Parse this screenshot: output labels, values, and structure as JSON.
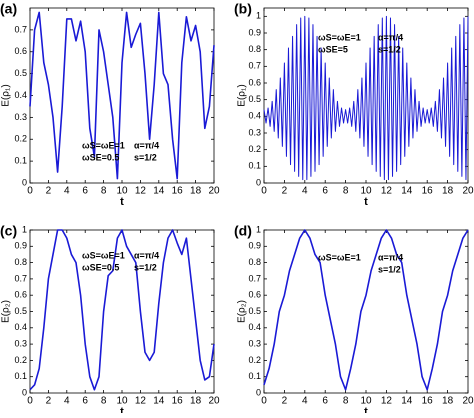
{
  "chart_data": [
    {
      "type": "line",
      "panel_label": "(a)",
      "x_label": "t",
      "y_label": "E(ρ₁)",
      "color": "#1a1ad6",
      "annotations": [
        "ωS=ωE=1",
        "ωSE=0.5",
        "α=π/4",
        "s=1/2"
      ],
      "xlim": [
        0,
        20
      ],
      "xticks": [
        0,
        2,
        4,
        6,
        8,
        10,
        12,
        14,
        16,
        18,
        20
      ],
      "ylim": [
        0,
        0.8
      ],
      "yticks": [
        0,
        0.1,
        0.2,
        0.3,
        0.4,
        0.5,
        0.6,
        0.7
      ],
      "x": [
        0,
        0.5,
        1,
        1.5,
        2,
        2.5,
        3,
        3.5,
        4,
        4.5,
        5,
        5.5,
        6,
        6.5,
        7,
        7.5,
        8,
        8.5,
        9,
        9.5,
        10,
        10.5,
        11,
        11.5,
        12,
        12.5,
        13,
        13.5,
        14,
        14.5,
        15,
        15.5,
        16,
        16.5,
        17,
        17.5,
        18,
        18.5,
        19,
        19.5,
        20
      ],
      "values": [
        0.35,
        0.7,
        0.78,
        0.55,
        0.45,
        0.3,
        0.05,
        0.35,
        0.75,
        0.75,
        0.65,
        0.74,
        0.6,
        0.25,
        0.12,
        0.7,
        0.6,
        0.45,
        0.3,
        0.02,
        0.55,
        0.78,
        0.62,
        0.68,
        0.73,
        0.5,
        0.2,
        0.45,
        0.78,
        0.5,
        0.45,
        0.2,
        0.02,
        0.55,
        0.76,
        0.65,
        0.72,
        0.6,
        0.25,
        0.35,
        0.63
      ]
    },
    {
      "type": "line",
      "panel_label": "(b)",
      "x_label": "t",
      "y_label": "E(ρ₁)",
      "color": "#1a1ad6",
      "annotations": [
        "ωS=ωE=1",
        "ωSE=5",
        "α=π/4",
        "s=1/2"
      ],
      "xlim": [
        0,
        20
      ],
      "xticks": [
        0,
        2,
        4,
        6,
        8,
        10,
        12,
        14,
        16,
        18,
        20
      ],
      "ylim": [
        0,
        1.05
      ],
      "yticks": [
        0,
        0.1,
        0.2,
        0.3,
        0.4,
        0.5,
        0.6,
        0.7,
        0.8,
        0.9,
        1
      ],
      "x": [
        0,
        0.2,
        0.4,
        0.6,
        0.8,
        1,
        1.2,
        1.4,
        1.6,
        1.8,
        2,
        2.2,
        2.4,
        2.6,
        2.8,
        3,
        3.2,
        3.4,
        3.6,
        3.8,
        4,
        4.2,
        4.4,
        4.6,
        4.8,
        5,
        5.2,
        5.4,
        5.6,
        5.8,
        6,
        6.2,
        6.4,
        6.6,
        6.8,
        7,
        7.2,
        7.4,
        7.6,
        7.8,
        8,
        8.2,
        8.4,
        8.6,
        8.8,
        9,
        9.2,
        9.4,
        9.6,
        9.8,
        10,
        10.2,
        10.4,
        10.6,
        10.8,
        11,
        11.2,
        11.4,
        11.6,
        11.8,
        12,
        12.2,
        12.4,
        12.6,
        12.8,
        13,
        13.2,
        13.4,
        13.6,
        13.8,
        14,
        14.2,
        14.4,
        14.6,
        14.8,
        15,
        15.2,
        15.4,
        15.6,
        15.8,
        16,
        16.2,
        16.4,
        16.6,
        16.8,
        17,
        17.2,
        17.4,
        17.6,
        17.8,
        18,
        18.2,
        18.4,
        18.6,
        18.8,
        19,
        19.2,
        19.4,
        19.6,
        19.8,
        20
      ],
      "values": [
        0.44,
        0.36,
        0.45,
        0.34,
        0.49,
        0.31,
        0.56,
        0.27,
        0.63,
        0.22,
        0.72,
        0.16,
        0.81,
        0.11,
        0.88,
        0.07,
        0.95,
        0.04,
        0.99,
        0.02,
        1,
        0.02,
        0.99,
        0.04,
        0.95,
        0.07,
        0.88,
        0.11,
        0.81,
        0.16,
        0.72,
        0.22,
        0.63,
        0.27,
        0.56,
        0.31,
        0.49,
        0.34,
        0.45,
        0.36,
        0.44,
        0.36,
        0.45,
        0.34,
        0.49,
        0.31,
        0.56,
        0.27,
        0.63,
        0.22,
        0.72,
        0.16,
        0.81,
        0.11,
        0.88,
        0.07,
        0.95,
        0.04,
        0.99,
        0.02,
        1,
        0.02,
        0.99,
        0.04,
        0.95,
        0.07,
        0.88,
        0.11,
        0.81,
        0.16,
        0.72,
        0.22,
        0.63,
        0.27,
        0.56,
        0.31,
        0.49,
        0.34,
        0.45,
        0.36,
        0.44,
        0.36,
        0.45,
        0.34,
        0.49,
        0.31,
        0.56,
        0.27,
        0.63,
        0.22,
        0.72,
        0.16,
        0.81,
        0.11,
        0.88,
        0.07,
        0.95,
        0.04,
        0.99,
        0.02,
        1
      ]
    },
    {
      "type": "line",
      "panel_label": "(c)",
      "x_label": "t",
      "y_label": "E(ρ₂)",
      "color": "#1a1ad6",
      "annotations": [
        "ωS=ωE=1",
        "ωSE=0.5",
        "α=π/4",
        "s=1/2"
      ],
      "xlim": [
        0,
        20
      ],
      "xticks": [
        0,
        2,
        4,
        6,
        8,
        10,
        12,
        14,
        16,
        18,
        20
      ],
      "ylim": [
        0,
        1
      ],
      "yticks": [
        0,
        0.1,
        0.2,
        0.3,
        0.4,
        0.5,
        0.6,
        0.7,
        0.8,
        0.9,
        1
      ],
      "x": [
        0,
        0.5,
        1,
        1.5,
        2,
        2.5,
        3,
        3.5,
        4,
        4.5,
        5,
        5.5,
        6,
        6.5,
        7,
        7.5,
        8,
        8.5,
        9,
        9.5,
        10,
        10.5,
        11,
        11.5,
        12,
        12.5,
        13,
        13.5,
        14,
        14.5,
        15,
        15.5,
        16,
        16.5,
        17,
        17.5,
        18,
        18.5,
        19,
        19.5,
        20
      ],
      "values": [
        0.02,
        0.05,
        0.15,
        0.4,
        0.7,
        0.85,
        1,
        1,
        0.95,
        0.85,
        0.8,
        0.6,
        0.3,
        0.1,
        0.02,
        0.1,
        0.5,
        0.72,
        0.75,
        0.95,
        1,
        0.9,
        0.85,
        0.8,
        0.5,
        0.25,
        0.2,
        0.25,
        0.55,
        0.8,
        0.95,
        1,
        0.92,
        0.85,
        0.95,
        0.7,
        0.45,
        0.2,
        0.08,
        0.1,
        0.3
      ]
    },
    {
      "type": "line",
      "panel_label": "(d)",
      "x_label": "t",
      "y_label": "E(ρ₂)",
      "color": "#1a1ad6",
      "annotations": [
        "ωS=ωE=1",
        "α=π/4",
        "s=1/2"
      ],
      "xlim": [
        0,
        20
      ],
      "xticks": [
        0,
        2,
        4,
        6,
        8,
        10,
        12,
        14,
        16,
        18,
        20
      ],
      "ylim": [
        0,
        1
      ],
      "yticks": [
        0,
        0.1,
        0.2,
        0.3,
        0.4,
        0.5,
        0.6,
        0.7,
        0.8,
        0.9,
        1
      ],
      "x": [
        0,
        0.5,
        1,
        1.5,
        2,
        2.5,
        3,
        3.5,
        4,
        4.5,
        5,
        5.5,
        6,
        6.5,
        7,
        7.5,
        8,
        8.5,
        9,
        9.5,
        10,
        10.5,
        11,
        11.5,
        12,
        12.5,
        13,
        13.5,
        14,
        14.5,
        15,
        15.5,
        16,
        16.5,
        17,
        17.5,
        18,
        18.5,
        19,
        19.5,
        20
      ],
      "values": [
        0.05,
        0.15,
        0.3,
        0.5,
        0.6,
        0.75,
        0.85,
        0.95,
        1,
        0.95,
        0.85,
        0.8,
        0.6,
        0.45,
        0.3,
        0.1,
        0.02,
        0.15,
        0.3,
        0.5,
        0.6,
        0.75,
        0.85,
        0.95,
        1,
        0.95,
        0.85,
        0.8,
        0.6,
        0.45,
        0.3,
        0.1,
        0.02,
        0.15,
        0.3,
        0.5,
        0.6,
        0.75,
        0.85,
        0.95,
        1
      ]
    }
  ]
}
